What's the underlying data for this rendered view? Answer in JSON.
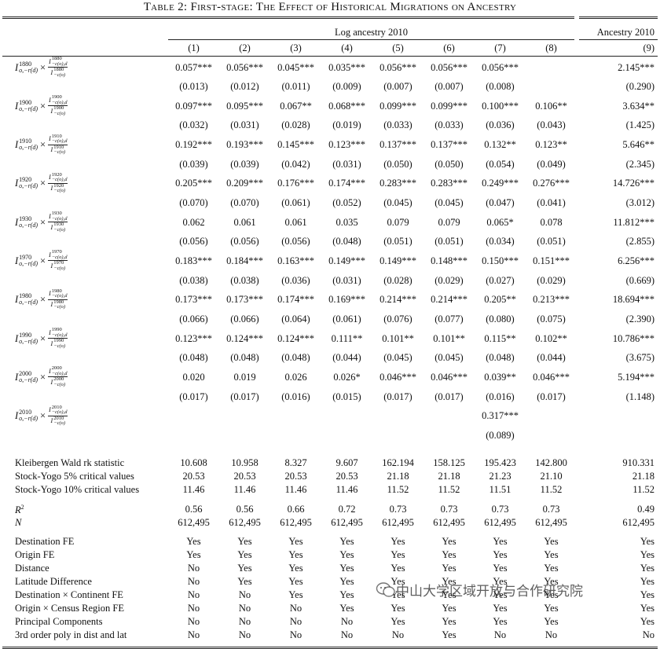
{
  "title": "Table 2: First-stage: The Effect of Historical Migrations on Ancestry",
  "header": {
    "group_left": "Log ancestry 2010",
    "group_right": "Ancestry 2010",
    "columns": [
      "(1)",
      "(2)",
      "(3)",
      "(4)",
      "(5)",
      "(6)",
      "(7)",
      "(8)",
      "(9)"
    ]
  },
  "instrument": {
    "symbol": "I",
    "sub": "o,−r(d)",
    "times": "×",
    "num_sub": "−c(o),d",
    "den_sub": "−c(o)"
  },
  "coef_rows": [
    {
      "year": "1880",
      "coef": [
        "0.057***",
        "0.056***",
        "0.045***",
        "0.035***",
        "0.056***",
        "0.056***",
        "0.056***",
        null,
        "2.145***"
      ],
      "se": [
        "(0.013)",
        "(0.012)",
        "(0.011)",
        "(0.009)",
        "(0.007)",
        "(0.007)",
        "(0.008)",
        null,
        "(0.290)"
      ]
    },
    {
      "year": "1900",
      "coef": [
        "0.097***",
        "0.095***",
        "0.067**",
        "0.068***",
        "0.099***",
        "0.099***",
        "0.100***",
        "0.106**",
        "3.634**"
      ],
      "se": [
        "(0.032)",
        "(0.031)",
        "(0.028)",
        "(0.019)",
        "(0.033)",
        "(0.033)",
        "(0.036)",
        "(0.043)",
        "(1.425)"
      ]
    },
    {
      "year": "1910",
      "coef": [
        "0.192***",
        "0.193***",
        "0.145***",
        "0.123***",
        "0.137***",
        "0.137***",
        "0.132**",
        "0.123**",
        "5.646**"
      ],
      "se": [
        "(0.039)",
        "(0.039)",
        "(0.042)",
        "(0.031)",
        "(0.050)",
        "(0.050)",
        "(0.054)",
        "(0.049)",
        "(2.345)"
      ]
    },
    {
      "year": "1920",
      "coef": [
        "0.205***",
        "0.209***",
        "0.176***",
        "0.174***",
        "0.283***",
        "0.283***",
        "0.249***",
        "0.276***",
        "14.726***"
      ],
      "se": [
        "(0.070)",
        "(0.070)",
        "(0.061)",
        "(0.052)",
        "(0.045)",
        "(0.045)",
        "(0.047)",
        "(0.041)",
        "(3.012)"
      ]
    },
    {
      "year": "1930",
      "coef": [
        "0.062",
        "0.061",
        "0.061",
        "0.035",
        "0.079",
        "0.079",
        "0.065*",
        "0.078",
        "11.812***"
      ],
      "se": [
        "(0.056)",
        "(0.056)",
        "(0.056)",
        "(0.048)",
        "(0.051)",
        "(0.051)",
        "(0.034)",
        "(0.051)",
        "(2.855)"
      ]
    },
    {
      "year": "1970",
      "coef": [
        "0.183***",
        "0.184***",
        "0.163***",
        "0.149***",
        "0.149***",
        "0.148***",
        "0.150***",
        "0.151***",
        "6.256***"
      ],
      "se": [
        "(0.038)",
        "(0.038)",
        "(0.036)",
        "(0.031)",
        "(0.028)",
        "(0.029)",
        "(0.027)",
        "(0.029)",
        "(0.669)"
      ]
    },
    {
      "year": "1980",
      "coef": [
        "0.173***",
        "0.173***",
        "0.174***",
        "0.169***",
        "0.214***",
        "0.214***",
        "0.205**",
        "0.213***",
        "18.694***"
      ],
      "se": [
        "(0.066)",
        "(0.066)",
        "(0.064)",
        "(0.061)",
        "(0.076)",
        "(0.077)",
        "(0.080)",
        "(0.075)",
        "(2.390)"
      ]
    },
    {
      "year": "1990",
      "coef": [
        "0.123***",
        "0.124***",
        "0.124***",
        "0.111**",
        "0.101**",
        "0.101**",
        "0.115**",
        "0.102**",
        "10.786***"
      ],
      "se": [
        "(0.048)",
        "(0.048)",
        "(0.048)",
        "(0.044)",
        "(0.045)",
        "(0.045)",
        "(0.048)",
        "(0.044)",
        "(3.675)"
      ]
    },
    {
      "year": "2000",
      "coef": [
        "0.020",
        "0.019",
        "0.026",
        "0.026*",
        "0.046***",
        "0.046***",
        "0.039**",
        "0.046***",
        "5.194***"
      ],
      "se": [
        "(0.017)",
        "(0.017)",
        "(0.016)",
        "(0.015)",
        "(0.017)",
        "(0.017)",
        "(0.016)",
        "(0.017)",
        "(1.148)"
      ]
    },
    {
      "year": "2010",
      "coef": [
        null,
        null,
        null,
        null,
        null,
        null,
        "0.317***",
        null,
        null
      ],
      "se": [
        null,
        null,
        null,
        null,
        null,
        null,
        "(0.089)",
        null,
        null
      ]
    }
  ],
  "stat_rows": [
    {
      "label": "Kleibergen Wald rk statistic",
      "values": [
        "10.608",
        "10.958",
        "8.327",
        "9.607",
        "162.194",
        "158.125",
        "195.423",
        "142.800",
        "910.331"
      ]
    },
    {
      "label": "Stock-Yogo 5% critical values",
      "values": [
        "20.53",
        "20.53",
        "20.53",
        "20.53",
        "21.18",
        "21.18",
        "21.23",
        "21.10",
        "21.18"
      ]
    },
    {
      "label": "Stock-Yogo 10% critical values",
      "values": [
        "11.46",
        "11.46",
        "11.46",
        "11.46",
        "11.52",
        "11.52",
        "11.51",
        "11.52",
        "11.52"
      ]
    }
  ],
  "fit_rows": [
    {
      "symbol": "R",
      "sup": "2",
      "values": [
        "0.56",
        "0.56",
        "0.66",
        "0.72",
        "0.73",
        "0.73",
        "0.73",
        "0.73",
        "0.49"
      ]
    },
    {
      "symbol": "N",
      "values": [
        "612,495",
        "612,495",
        "612,495",
        "612,495",
        "612,495",
        "612,495",
        "612,495",
        "612,495",
        "612,495"
      ]
    }
  ],
  "control_rows": [
    {
      "label": "Destination FE",
      "values": [
        "Yes",
        "Yes",
        "Yes",
        "Yes",
        "Yes",
        "Yes",
        "Yes",
        "Yes",
        "Yes"
      ]
    },
    {
      "label": "Origin FE",
      "values": [
        "Yes",
        "Yes",
        "Yes",
        "Yes",
        "Yes",
        "Yes",
        "Yes",
        "Yes",
        "Yes"
      ]
    },
    {
      "label": "Distance",
      "values": [
        "No",
        "Yes",
        "Yes",
        "Yes",
        "Yes",
        "Yes",
        "Yes",
        "Yes",
        "Yes"
      ]
    },
    {
      "label": "Latitude Difference",
      "values": [
        "No",
        "Yes",
        "Yes",
        "Yes",
        "Yes",
        "Yes",
        "Yes",
        "Yes",
        "Yes"
      ]
    },
    {
      "label": "Destination × Continent FE",
      "values": [
        "No",
        "No",
        "Yes",
        "Yes",
        "Yes",
        "Yes",
        "Yes",
        "Yes",
        "Yes"
      ]
    },
    {
      "label": "Origin × Census Region FE",
      "values": [
        "No",
        "No",
        "No",
        "Yes",
        "Yes",
        "Yes",
        "Yes",
        "Yes",
        "Yes"
      ]
    },
    {
      "label": "Principal Components",
      "values": [
        "No",
        "No",
        "No",
        "No",
        "Yes",
        "Yes",
        "Yes",
        "Yes",
        "Yes"
      ]
    },
    {
      "label": "3rd order poly in dist and lat",
      "values": [
        "No",
        "No",
        "No",
        "No",
        "No",
        "Yes",
        "No",
        "No",
        "No"
      ]
    }
  ],
  "watermark": "中山大学区域开放与合作研究院"
}
